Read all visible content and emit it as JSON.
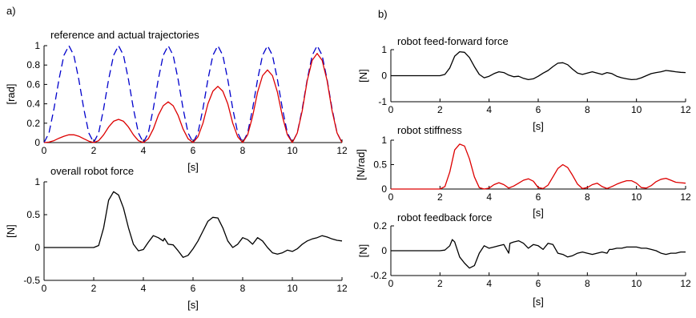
{
  "panel_labels": {
    "a": "a)",
    "b": "b)"
  },
  "chart_data": [
    {
      "id": "a1",
      "type": "line",
      "title": "reference and actual trajectories",
      "xlabel": "[s]",
      "ylabel": "[rad]",
      "xlim": [
        0,
        12
      ],
      "ylim": [
        0,
        1
      ],
      "xticks": [
        0,
        2,
        4,
        6,
        8,
        10,
        12
      ],
      "yticks": [
        0,
        0.2,
        0.4,
        0.6,
        0.8,
        1
      ],
      "series": [
        {
          "style": "dashed",
          "color": "#0000cc",
          "x": [
            0,
            0.2,
            0.4,
            0.6,
            0.8,
            1.0,
            1.2,
            1.4,
            1.6,
            1.8,
            2.0,
            2.2,
            2.4,
            2.6,
            2.8,
            3.0,
            3.2,
            3.4,
            3.6,
            3.8,
            4.0,
            4.2,
            4.4,
            4.6,
            4.8,
            5.0,
            5.2,
            5.4,
            5.6,
            5.8,
            6.0,
            6.2,
            6.4,
            6.6,
            6.8,
            7.0,
            7.2,
            7.4,
            7.6,
            7.8,
            8.0,
            8.2,
            8.4,
            8.6,
            8.8,
            9.0,
            9.2,
            9.4,
            9.6,
            9.8,
            10.0,
            10.2,
            10.4,
            10.6,
            10.8,
            11.0,
            11.2,
            11.4,
            11.6,
            11.8,
            12.0
          ],
          "y": [
            0,
            0.1,
            0.35,
            0.65,
            0.9,
            1.0,
            0.9,
            0.65,
            0.35,
            0.1,
            0,
            0.1,
            0.35,
            0.65,
            0.9,
            1.0,
            0.9,
            0.65,
            0.35,
            0.1,
            0,
            0.1,
            0.35,
            0.65,
            0.9,
            1.0,
            0.9,
            0.65,
            0.35,
            0.1,
            0,
            0.1,
            0.35,
            0.65,
            0.9,
            1.0,
            0.9,
            0.65,
            0.35,
            0.1,
            0,
            0.1,
            0.35,
            0.65,
            0.9,
            1.0,
            0.9,
            0.65,
            0.35,
            0.1,
            0,
            0.1,
            0.35,
            0.65,
            0.9,
            1.0,
            0.9,
            0.65,
            0.35,
            0.1,
            0
          ]
        },
        {
          "style": "solid",
          "color": "#dd0000",
          "x": [
            0,
            0.2,
            0.4,
            0.6,
            0.8,
            1.0,
            1.2,
            1.4,
            1.6,
            1.8,
            2.0,
            2.2,
            2.4,
            2.6,
            2.8,
            3.0,
            3.2,
            3.4,
            3.6,
            3.8,
            4.0,
            4.2,
            4.4,
            4.6,
            4.8,
            5.0,
            5.2,
            5.4,
            5.6,
            5.8,
            6.0,
            6.2,
            6.4,
            6.6,
            6.8,
            7.0,
            7.2,
            7.4,
            7.6,
            7.8,
            8.0,
            8.2,
            8.4,
            8.6,
            8.8,
            9.0,
            9.2,
            9.4,
            9.6,
            9.8,
            10.0,
            10.2,
            10.4,
            10.6,
            10.8,
            11.0,
            11.2,
            11.4,
            11.6,
            11.8,
            12.0
          ],
          "y": [
            0,
            0.005,
            0.02,
            0.045,
            0.065,
            0.08,
            0.08,
            0.065,
            0.04,
            0.015,
            0,
            0.02,
            0.08,
            0.16,
            0.22,
            0.24,
            0.22,
            0.16,
            0.08,
            0.02,
            0,
            0.04,
            0.14,
            0.28,
            0.38,
            0.42,
            0.38,
            0.28,
            0.14,
            0.04,
            0,
            0.06,
            0.2,
            0.4,
            0.53,
            0.58,
            0.53,
            0.4,
            0.2,
            0.06,
            0,
            0.08,
            0.27,
            0.52,
            0.69,
            0.75,
            0.69,
            0.52,
            0.27,
            0.08,
            0,
            0.1,
            0.33,
            0.64,
            0.85,
            0.92,
            0.85,
            0.64,
            0.33,
            0.1,
            0
          ]
        }
      ]
    },
    {
      "id": "a2",
      "type": "line",
      "title": "overall robot force",
      "xlabel": "[s]",
      "ylabel": "[N]",
      "xlim": [
        0,
        12
      ],
      "ylim": [
        -0.5,
        1
      ],
      "xticks": [
        0,
        2,
        4,
        6,
        8,
        10,
        12
      ],
      "yticks": [
        -0.5,
        0,
        0.5,
        1
      ],
      "series": [
        {
          "style": "solid",
          "color": "#000000",
          "x": [
            0,
            1,
            2,
            2.2,
            2.4,
            2.6,
            2.8,
            3.0,
            3.2,
            3.4,
            3.6,
            3.8,
            4.0,
            4.2,
            4.4,
            4.6,
            4.8,
            4.85,
            5.0,
            5.2,
            5.4,
            5.6,
            5.8,
            6.0,
            6.2,
            6.4,
            6.6,
            6.8,
            7.0,
            7.2,
            7.4,
            7.6,
            7.8,
            8.0,
            8.2,
            8.4,
            8.6,
            8.8,
            9.0,
            9.2,
            9.4,
            9.6,
            9.8,
            10.0,
            10.2,
            10.4,
            10.6,
            10.8,
            11.0,
            11.2,
            11.4,
            11.6,
            11.8,
            12.0
          ],
          "y": [
            0,
            0,
            0,
            0.03,
            0.3,
            0.72,
            0.85,
            0.8,
            0.6,
            0.3,
            0.05,
            -0.05,
            -0.03,
            0.08,
            0.18,
            0.15,
            0.1,
            0.14,
            0.05,
            0.04,
            -0.05,
            -0.15,
            -0.12,
            -0.02,
            0.1,
            0.25,
            0.4,
            0.46,
            0.45,
            0.3,
            0.1,
            0,
            0.05,
            0.15,
            0.12,
            0.05,
            0.15,
            0.1,
            0,
            -0.08,
            -0.1,
            -0.08,
            -0.04,
            -0.06,
            -0.02,
            0.05,
            0.1,
            0.13,
            0.15,
            0.18,
            0.16,
            0.13,
            0.11,
            0.1
          ]
        }
      ]
    },
    {
      "id": "b1",
      "type": "line",
      "title": "robot feed-forward force",
      "xlabel": "[s]",
      "ylabel": "[N]",
      "xlim": [
        0,
        12
      ],
      "ylim": [
        -1,
        1
      ],
      "xticks": [
        0,
        2,
        4,
        6,
        8,
        10,
        12
      ],
      "yticks": [
        -1,
        0,
        1
      ],
      "series": [
        {
          "style": "solid",
          "color": "#000000",
          "x": [
            0,
            1,
            2,
            2.2,
            2.4,
            2.6,
            2.8,
            3.0,
            3.2,
            3.4,
            3.6,
            3.8,
            4.0,
            4.2,
            4.4,
            4.6,
            4.8,
            5.0,
            5.2,
            5.4,
            5.6,
            5.8,
            6.0,
            6.2,
            6.4,
            6.6,
            6.8,
            7.0,
            7.2,
            7.4,
            7.6,
            7.8,
            8.0,
            8.2,
            8.4,
            8.6,
            8.8,
            9.0,
            9.2,
            9.4,
            9.6,
            9.8,
            10.0,
            10.2,
            10.4,
            10.6,
            10.8,
            11.0,
            11.2,
            11.4,
            11.6,
            11.8,
            12.0
          ],
          "y": [
            0,
            0,
            0,
            0.05,
            0.3,
            0.75,
            0.92,
            0.9,
            0.7,
            0.35,
            0.05,
            -0.08,
            -0.02,
            0.08,
            0.15,
            0.12,
            0.02,
            -0.04,
            -0.02,
            -0.1,
            -0.15,
            -0.12,
            -0.02,
            0.1,
            0.2,
            0.35,
            0.48,
            0.5,
            0.42,
            0.25,
            0.1,
            0.05,
            0.1,
            0.15,
            0.1,
            0.05,
            0.12,
            0.08,
            -0.02,
            -0.08,
            -0.12,
            -0.15,
            -0.14,
            -0.08,
            0.0,
            0.08,
            0.12,
            0.15,
            0.2,
            0.18,
            0.15,
            0.13,
            0.12
          ]
        }
      ]
    },
    {
      "id": "b2",
      "type": "line",
      "title": "robot stiffness",
      "xlabel": "[s]",
      "ylabel": "[N/rad]",
      "xlim": [
        0,
        12
      ],
      "ylim": [
        0,
        1
      ],
      "xticks": [
        0,
        2,
        4,
        6,
        8,
        10,
        12
      ],
      "yticks": [
        0,
        0.5,
        1
      ],
      "series": [
        {
          "style": "solid",
          "color": "#dd0000",
          "x": [
            0,
            1,
            2,
            2.2,
            2.4,
            2.6,
            2.8,
            3.0,
            3.2,
            3.4,
            3.6,
            3.8,
            4.0,
            4.2,
            4.4,
            4.6,
            4.8,
            5.0,
            5.2,
            5.4,
            5.6,
            5.8,
            6.0,
            6.2,
            6.4,
            6.6,
            6.8,
            7.0,
            7.2,
            7.4,
            7.6,
            7.8,
            8.0,
            8.2,
            8.4,
            8.6,
            8.8,
            9.0,
            9.2,
            9.4,
            9.6,
            9.8,
            10.0,
            10.2,
            10.4,
            10.6,
            10.8,
            11.0,
            11.2,
            11.4,
            11.6,
            11.8,
            12.0
          ],
          "y": [
            0,
            0,
            0,
            0.05,
            0.35,
            0.8,
            0.92,
            0.88,
            0.62,
            0.25,
            0.03,
            0,
            0.02,
            0.09,
            0.13,
            0.09,
            0.02,
            0.06,
            0.12,
            0.18,
            0.21,
            0.16,
            0.03,
            0.01,
            0.08,
            0.25,
            0.42,
            0.5,
            0.44,
            0.28,
            0.1,
            0.01,
            0.03,
            0.09,
            0.12,
            0.05,
            0.01,
            0.05,
            0.1,
            0.14,
            0.17,
            0.17,
            0.12,
            0.03,
            0.02,
            0.07,
            0.15,
            0.2,
            0.22,
            0.18,
            0.14,
            0.13,
            0.12
          ]
        }
      ]
    },
    {
      "id": "b3",
      "type": "line",
      "title": "robot feedback force",
      "xlabel": "[s]",
      "ylabel": "[N]",
      "xlim": [
        0,
        12
      ],
      "ylim": [
        -0.2,
        0.2
      ],
      "xticks": [
        0,
        2,
        4,
        6,
        8,
        10,
        12
      ],
      "yticks": [
        -0.2,
        0,
        0.2
      ],
      "series": [
        {
          "style": "solid",
          "color": "#000000",
          "x": [
            0,
            1,
            2,
            2.2,
            2.4,
            2.5,
            2.6,
            2.8,
            3.0,
            3.2,
            3.4,
            3.6,
            3.8,
            4.0,
            4.2,
            4.4,
            4.6,
            4.8,
            4.85,
            5.0,
            5.2,
            5.4,
            5.6,
            5.8,
            6.0,
            6.2,
            6.4,
            6.6,
            6.8,
            7.0,
            7.2,
            7.4,
            7.6,
            7.8,
            8.0,
            8.2,
            8.4,
            8.6,
            8.8,
            8.9,
            9.0,
            9.2,
            9.4,
            9.6,
            9.8,
            10.0,
            10.2,
            10.4,
            10.6,
            10.8,
            11.0,
            11.2,
            11.4,
            11.6,
            11.8,
            12.0
          ],
          "y": [
            0,
            0,
            0,
            0.005,
            0.04,
            0.09,
            0.07,
            -0.05,
            -0.1,
            -0.14,
            -0.12,
            -0.02,
            0.04,
            0.02,
            0.03,
            0.04,
            0.05,
            -0.02,
            0.06,
            0.07,
            0.08,
            0.06,
            0.02,
            0.05,
            0.04,
            0.01,
            0.06,
            0.05,
            -0.02,
            -0.03,
            -0.05,
            -0.04,
            -0.02,
            -0.01,
            -0.02,
            -0.03,
            -0.02,
            -0.01,
            -0.02,
            0.01,
            0.01,
            0.02,
            0.02,
            0.03,
            0.03,
            0.03,
            0.02,
            0.02,
            0.01,
            0.0,
            -0.02,
            -0.03,
            -0.02,
            -0.02,
            -0.01,
            -0.01
          ]
        }
      ]
    }
  ]
}
